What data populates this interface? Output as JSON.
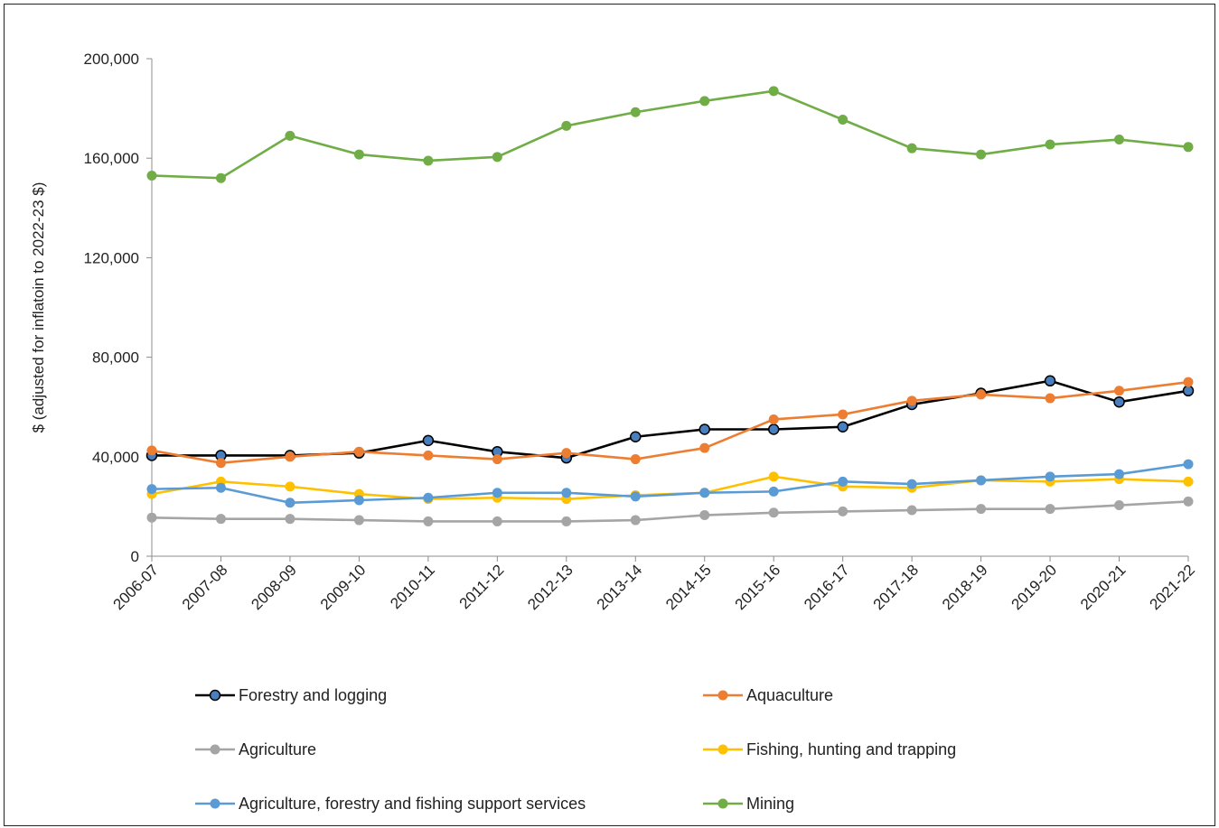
{
  "chart_data": {
    "type": "line",
    "title": "",
    "xlabel": "",
    "ylabel": "$ (adjusted for inflatoin to 2022-23 $)",
    "ylim": [
      0,
      200000
    ],
    "yticks": [
      0,
      40000,
      80000,
      120000,
      160000,
      200000
    ],
    "ytick_labels": [
      "0",
      "40,000",
      "80,000",
      "120,000",
      "160,000",
      "200,000"
    ],
    "grid": false,
    "legend_position": "bottom",
    "categories": [
      "2006-07",
      "2007-08",
      "2008-09",
      "2009-10",
      "2010-11",
      "2011-12",
      "2012-13",
      "2013-14",
      "2014-15",
      "2015-16",
      "2016-17",
      "2017-18",
      "2018-19",
      "2019-20",
      "2020-21",
      "2021-22"
    ],
    "series": [
      {
        "name": "Forestry and logging",
        "color": "#000000",
        "marker_color": "#4a7fbf",
        "values": [
          40500,
          40500,
          40500,
          41500,
          46500,
          42000,
          39500,
          48000,
          51000,
          51000,
          52000,
          61000,
          65500,
          70500,
          62000,
          66500
        ]
      },
      {
        "name": "Aquaculture",
        "color": "#ED7D31",
        "marker_color": "#ED7D31",
        "values": [
          42500,
          37500,
          40000,
          42000,
          40500,
          39000,
          41500,
          39000,
          43500,
          55000,
          57000,
          62500,
          65000,
          63500,
          66500,
          70000
        ]
      },
      {
        "name": "Agriculture",
        "color": "#A5A5A5",
        "marker_color": "#A5A5A5",
        "values": [
          15500,
          15000,
          15000,
          14500,
          14000,
          14000,
          14000,
          14500,
          16500,
          17500,
          18000,
          18500,
          19000,
          19000,
          20500,
          22000
        ]
      },
      {
        "name": "Fishing, hunting and trapping",
        "color": "#FFC000",
        "marker_color": "#FFC000",
        "values": [
          25000,
          30000,
          28000,
          25000,
          23000,
          23500,
          23000,
          24500,
          25500,
          32000,
          28000,
          27500,
          30500,
          30000,
          31000,
          30000
        ]
      },
      {
        "name": "Agriculture, forestry and fishing support services",
        "color": "#5B9BD5",
        "marker_color": "#5B9BD5",
        "values": [
          27000,
          27500,
          21500,
          22500,
          23500,
          25500,
          25500,
          24000,
          25500,
          26000,
          30000,
          29000,
          30500,
          32000,
          33000,
          37000
        ]
      },
      {
        "name": "Mining",
        "color": "#70AD47",
        "marker_color": "#70AD47",
        "values": [
          153000,
          152000,
          169000,
          161500,
          159000,
          160500,
          173000,
          178500,
          183000,
          187000,
          175500,
          164000,
          161500,
          165500,
          167500,
          164500
        ]
      }
    ]
  }
}
